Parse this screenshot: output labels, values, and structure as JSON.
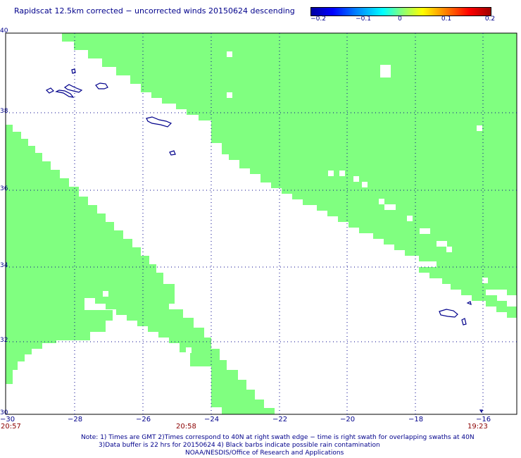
{
  "title": "Rapidscat 12.5km corrected − uncorrected winds 20150624 descending",
  "colorbar": {
    "ticks": [
      "−0.2",
      "−0.1",
      "0",
      "0.1",
      "0.2"
    ],
    "range": [
      -0.2,
      0.2
    ]
  },
  "axes": {
    "x_ticks": [
      "−30",
      "−28",
      "−26",
      "−24",
      "−22",
      "−20",
      "−18",
      "−16"
    ],
    "y_ticks": [
      "40",
      "38",
      "36",
      "34",
      "32",
      "30"
    ],
    "lon_range": [
      -30,
      -15.3
    ],
    "lat_range": [
      30,
      40
    ]
  },
  "times": {
    "left": "20:57",
    "middle": "20:58",
    "right": "19:23"
  },
  "notes": {
    "line1": "Note: 1) Times are GMT 2)Times correspond to 40N at right swath edge − time is right swath for overlapping swaths at 40N",
    "line2": "3)Data buffer is 22 hrs for 20150624 4) Black barbs indicate possible rain contamination",
    "line3": "NOAA/NESDIS/Office of Research and Applications"
  },
  "colors": {
    "swath": "#80ff80",
    "coast": "#00008b",
    "text": "#00008b",
    "time_text": "#8b0000"
  }
}
